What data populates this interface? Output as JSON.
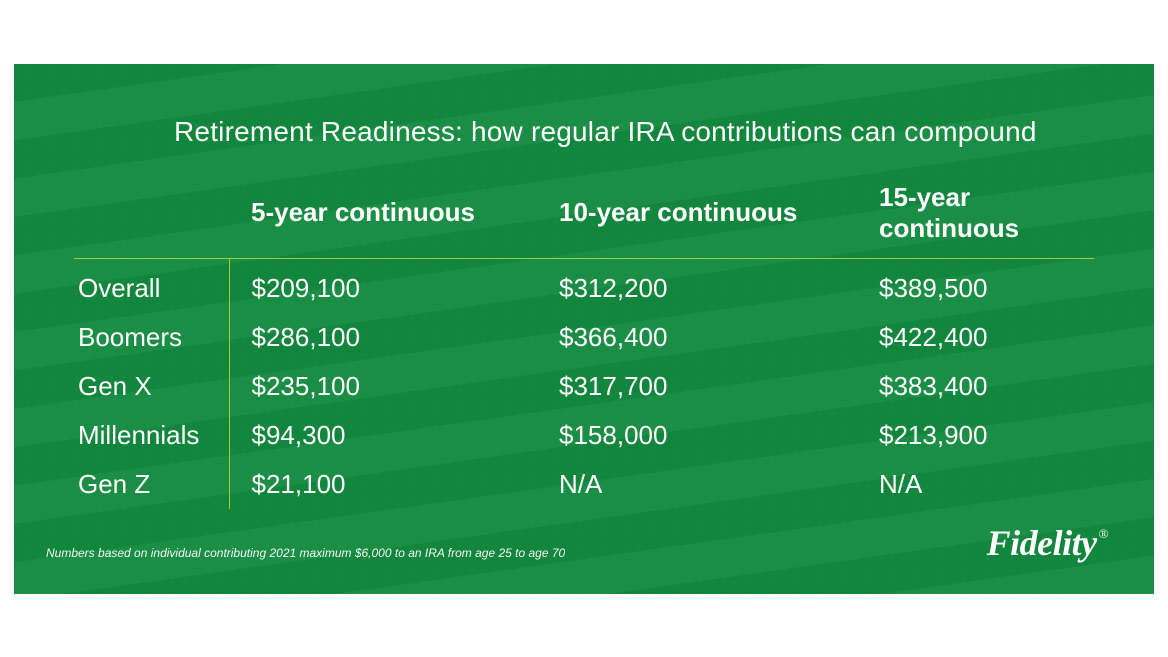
{
  "colors": {
    "background": "#128a3e",
    "rule": "#a4cc3a",
    "text": "#ffffff",
    "page_bg": "#ffffff"
  },
  "title": {
    "bold": "Retirement Readiness",
    "sep": ": ",
    "rest": "how regular IRA contributions can compound",
    "fontsize_pt": 21
  },
  "table": {
    "type": "table",
    "header_fontsize_pt": 20,
    "cell_fontsize_pt": 20,
    "columns": [
      "5-year continuous",
      "10-year continuous",
      "15-year continuous"
    ],
    "rows": [
      {
        "label": "Overall",
        "cells": [
          "$209,100",
          "$312,200",
          "$389,500"
        ]
      },
      {
        "label": "Boomers",
        "cells": [
          "$286,100",
          "$366,400",
          "$422,400"
        ]
      },
      {
        "label": "Gen X",
        "cells": [
          "$235,100",
          "$317,700",
          "$383,400"
        ]
      },
      {
        "label": "Millennials",
        "cells": [
          "$94,300",
          "$158,000",
          "$213,900"
        ]
      },
      {
        "label": "Gen Z",
        "cells": [
          "$21,100",
          "N/A",
          "N/A"
        ]
      }
    ]
  },
  "footnote": "Numbers based on individual contributing 2021 maximum $6,000 to an IRA from age 25 to age 70",
  "logo": {
    "text": "Fidelity",
    "registered": "®"
  }
}
